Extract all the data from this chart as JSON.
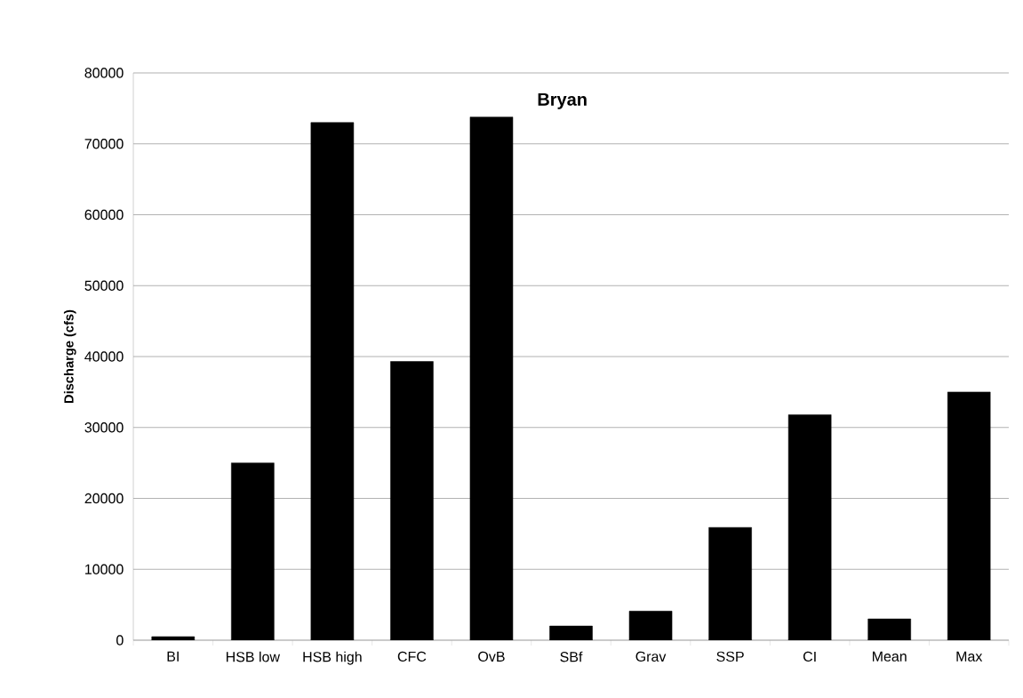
{
  "chart_data": {
    "type": "bar",
    "title": "Bryan",
    "ylabel": "Discharge (cfs)",
    "categories": [
      "BI",
      "HSB low",
      "HSB high",
      "CFC",
      "OvB",
      "SBf",
      "Grav",
      "SSP",
      "CI",
      "Mean",
      "Max"
    ],
    "values": [
      500,
      25000,
      73000,
      39300,
      73800,
      2000,
      4100,
      15900,
      31800,
      3000,
      35000
    ],
    "color": "#000000",
    "ylim": [
      0,
      80000
    ],
    "yticks": [
      0,
      10000,
      20000,
      30000,
      40000,
      50000,
      60000,
      70000,
      80000
    ],
    "grid": "y"
  }
}
